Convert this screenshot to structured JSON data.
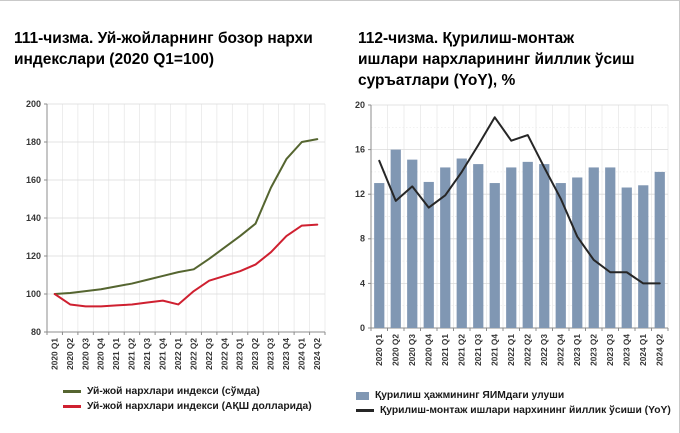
{
  "chart_data": [
    {
      "type": "line",
      "title": "111-чизма. Уй-жойларнинг бозор нархи индекслари (2020 Q1=100)",
      "categories": [
        "2020 Q1",
        "2020 Q2",
        "2020 Q3",
        "2020 Q4",
        "2021 Q1",
        "2021 Q2",
        "2021 Q3",
        "2021 Q4",
        "2022 Q1",
        "2022 Q2",
        "2022 Q3",
        "2022 Q4",
        "2023 Q1",
        "2023 Q2",
        "2023 Q3",
        "2023 Q4",
        "2024 Q1",
        "2024 Q2"
      ],
      "ylim": [
        80,
        200
      ],
      "y_step": 20,
      "grid": true,
      "legend_position": "bottom",
      "series": [
        {
          "name": "Уй-жой нархлари индекси (сўмда)",
          "type": "line",
          "color": "#556530",
          "values": [
            100,
            100.5,
            101.5,
            102.5,
            104,
            105.5,
            107.5,
            109.5,
            111.5,
            113,
            118.5,
            124.5,
            130.5,
            137,
            156,
            171,
            180,
            181.5
          ]
        },
        {
          "name": "Уй-жой нархлари индекси (АҚШ долларида)",
          "type": "line",
          "color": "#cf2030",
          "values": [
            100,
            94.5,
            93.5,
            93.5,
            94,
            94.5,
            95.5,
            96.5,
            94.5,
            101.5,
            107,
            109.5,
            112,
            115.5,
            122,
            130.5,
            136,
            136.5
          ]
        }
      ]
    },
    {
      "type": "combo",
      "title": "112-чизма. Қурилиш-монтаж ишлари нархларининг йиллик ўсиш суръатлари (YoY), %",
      "categories": [
        "2020 Q1",
        "2020 Q2",
        "2020 Q3",
        "2020 Q4",
        "2021 Q1",
        "2021 Q2",
        "2021 Q3",
        "2021 Q4",
        "2022 Q1",
        "2022 Q2",
        "2022 Q3",
        "2022 Q4",
        "2023 Q1",
        "2023 Q2",
        "2023 Q3",
        "2023 Q4",
        "2024 Q1",
        "2024 Q2"
      ],
      "ylim": [
        0,
        20
      ],
      "y_step": 4,
      "y_minor": 2,
      "grid": true,
      "legend_position": "bottom",
      "series": [
        {
          "name": "Қурилиш ҳажмининг ЯИМдаги улуши",
          "type": "bar",
          "color": "#8097b3",
          "values": [
            13.0,
            16.0,
            15.1,
            13.1,
            14.4,
            15.2,
            14.7,
            13.0,
            14.4,
            14.9,
            14.7,
            13.0,
            13.5,
            14.4,
            14.4,
            12.6,
            12.8,
            14.0
          ]
        },
        {
          "name": "Қурилиш-монтаж ишлари нархининг йиллик ўсиши (YoY)",
          "type": "line",
          "color": "#262626",
          "values": [
            15.0,
            11.4,
            12.7,
            10.8,
            11.9,
            14.0,
            16.4,
            18.9,
            16.8,
            17.3,
            14.4,
            11.6,
            8.2,
            6.1,
            5.0,
            5.0,
            4.0,
            4.0
          ]
        }
      ]
    }
  ]
}
